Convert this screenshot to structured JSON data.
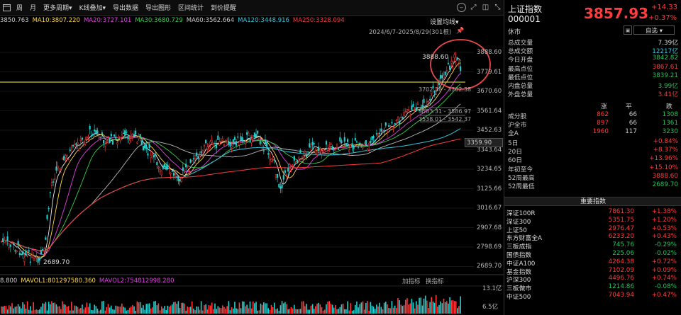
{
  "toolbar": {
    "menu": [
      "周",
      "月",
      "更多周期▾",
      "K线叠加▾",
      "导出数据",
      "导出图形",
      "区间统计",
      "到价提醒"
    ]
  },
  "chart": {
    "ma_legend": [
      {
        "text": "3850.763",
        "color": "#cccccc"
      },
      {
        "text": "MA10:3807.220",
        "color": "#ffd84a"
      },
      {
        "text": "MA20:3727.101",
        "color": "#e040e0"
      },
      {
        "text": "MA30:3680.729",
        "color": "#35d04a"
      },
      {
        "text": "MA60:3562.664",
        "color": "#cccccc"
      },
      {
        "text": "MA120:3448.916",
        "color": "#35c8e0"
      },
      {
        "text": "MA250:3328.094",
        "color": "#ff3b3b"
      }
    ],
    "settings_label": "设置均线▾",
    "range_label": "2024/6/7-2025/8/29(301根)",
    "price_ticks": [
      "3888.60",
      "3779.61",
      "3670.60",
      "3561.64",
      "3452.63",
      "3343.64",
      "3234.65",
      "3125.66",
      "3016.67",
      "2907.68",
      "2798.69",
      "2689.70"
    ],
    "current_tag": "3359.90",
    "high_label": "3888.60",
    "low_label": "2689.70",
    "annotations": [
      "3702.38 - 3702.38",
      "3583.31 - 3586.97",
      "3538.01 - 3542.37"
    ],
    "volume": {
      "legend": [
        {
          "text": "8.800",
          "color": "#cccccc"
        },
        {
          "text": "MAVOL1:801297580.360",
          "color": "#ffd84a"
        },
        {
          "text": "MAVOL2:754812998.280",
          "color": "#e040e0"
        }
      ],
      "btn_add": "加指标",
      "btn_switch": "换指标",
      "ticks": [
        "13.1亿",
        "6.5亿"
      ]
    }
  },
  "panel": {
    "name": "上证指数",
    "code": "000001",
    "price": "3857.93",
    "change": "+14.33",
    "pct": "+0.37%",
    "status": "休市",
    "watch_label": "自选 ▾",
    "stats": [
      {
        "label": "总成交量",
        "value": "7.39亿",
        "color": "#dddddd"
      },
      {
        "label": "总成交额",
        "value": "12217亿",
        "color": "#35c8e0"
      },
      {
        "label": "今日开盘",
        "value": "3842.82",
        "color": "#22c25a"
      },
      {
        "label": "最高点位",
        "value": "3867.61",
        "color": "#ff3b3b"
      },
      {
        "label": "最低点位",
        "value": "3839.21",
        "color": "#22c25a"
      },
      {
        "label": "内盘总量",
        "value": "3.99亿",
        "color": "#22c25a"
      },
      {
        "label": "外盘总量",
        "value": "3.41亿",
        "color": "#ff3b3b"
      }
    ],
    "breadth_head": [
      "涨",
      "平",
      "跌"
    ],
    "breadth": [
      {
        "label": "成分股",
        "up": "862",
        "flat": "66",
        "down": "1308"
      },
      {
        "label": "沪全市",
        "up": "897",
        "flat": "66",
        "down": "1361"
      },
      {
        "label": "全A",
        "up": "1960",
        "flat": "117",
        "down": "3230"
      }
    ],
    "perf": [
      {
        "label": "5日",
        "value": "+0.84%",
        "color": "#ff3b3b"
      },
      {
        "label": "20日",
        "value": "+8.37%",
        "color": "#ff3b3b"
      },
      {
        "label": "60日",
        "value": "+13.96%",
        "color": "#ff3b3b"
      },
      {
        "label": "年初至今",
        "value": "+15.10%",
        "color": "#ff3b3b"
      },
      {
        "label": "52周最高",
        "value": "3888.60",
        "color": "#ff3b3b"
      },
      {
        "label": "52周最低",
        "value": "2689.70",
        "color": "#22c25a"
      }
    ],
    "major_title": "重要指数",
    "major": [
      {
        "name": "深证100R",
        "price": "7861.30",
        "pct": "+1.38%",
        "color": "#ff3b3b"
      },
      {
        "name": "深证300",
        "price": "5351.75",
        "pct": "+1.20%",
        "color": "#ff3b3b"
      },
      {
        "name": "上证50",
        "price": "2976.47",
        "pct": "+0.53%",
        "color": "#ff3b3b"
      },
      {
        "name": "东方财富全A",
        "price": "6233.20",
        "pct": "+0.43%",
        "color": "#ff3b3b"
      },
      {
        "name": "三板成指",
        "price": "745.76",
        "pct": "-0.29%",
        "color": "#22c25a"
      },
      {
        "name": "国债指数",
        "price": "225.06",
        "pct": "-0.02%",
        "color": "#22c25a"
      },
      {
        "name": "中证A100",
        "price": "4264.38",
        "pct": "+0.72%",
        "color": "#ff3b3b"
      },
      {
        "name": "基金指数",
        "price": "7102.09",
        "pct": "+0.09%",
        "color": "#ff3b3b"
      },
      {
        "name": "沪深300",
        "price": "4496.76",
        "pct": "+0.74%",
        "color": "#ff3b3b"
      },
      {
        "name": "三板做市",
        "price": "1214.86",
        "pct": "-0.08%",
        "color": "#22c25a"
      },
      {
        "name": "中证500",
        "price": "7043.94",
        "pct": "+0.47%",
        "color": "#ff3b3b"
      }
    ]
  }
}
